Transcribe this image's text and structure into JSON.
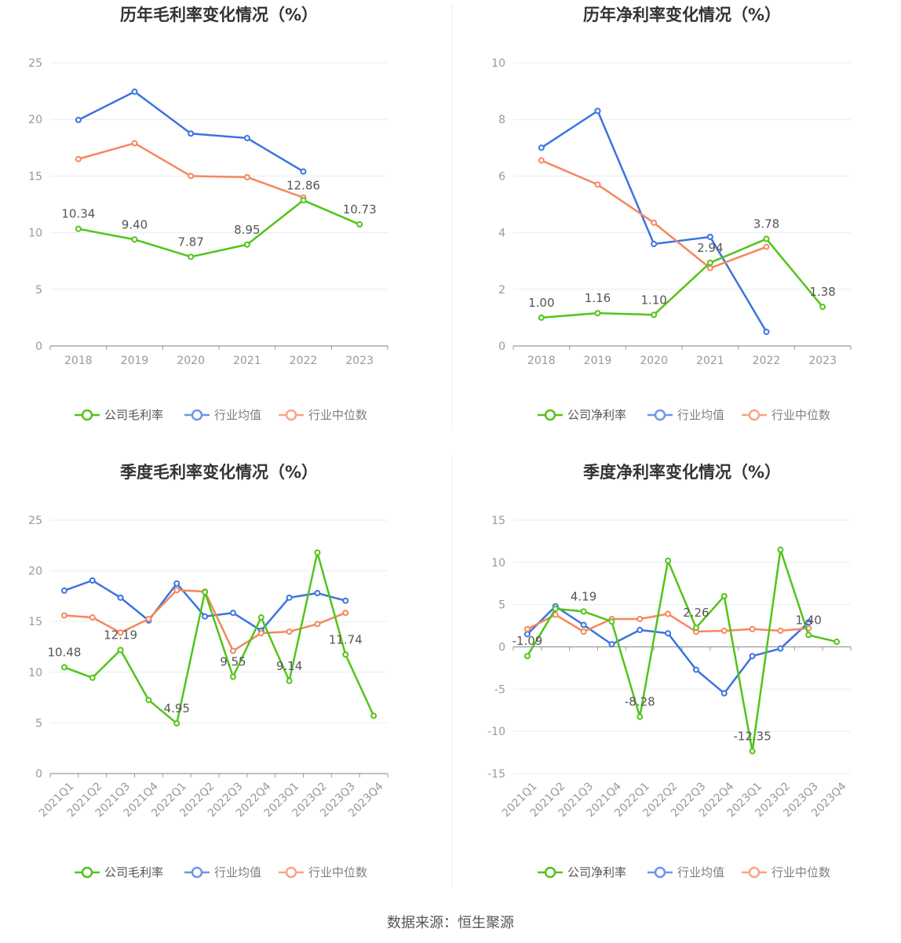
{
  "colors": {
    "company": "#52c41a",
    "industry_avg": "#3b73e0",
    "industry_median": "#f5875d",
    "axis": "#999999",
    "grid": "#e8ebf2",
    "label": "#555555",
    "title": "#333333"
  },
  "chart_data": [
    {
      "type": "line",
      "title": "历年毛利率变化情况（%）",
      "categories": [
        "2018",
        "2019",
        "2020",
        "2021",
        "2022",
        "2023"
      ],
      "ylim": [
        0,
        25
      ],
      "yticks": [
        0,
        5,
        10,
        15,
        20,
        25
      ],
      "xlabel": "",
      "ylabel": "",
      "legend_position": "bottom",
      "series": [
        {
          "name": "公司毛利率",
          "key": "company",
          "values": [
            10.34,
            9.4,
            7.87,
            8.95,
            12.86,
            10.73
          ],
          "labels": [
            "10.34",
            "9.40",
            "7.87",
            "8.95",
            "12.86",
            "10.73"
          ]
        },
        {
          "name": "行业均值",
          "key": "industry_avg",
          "values": [
            19.95,
            22.45,
            18.75,
            18.35,
            15.4,
            null
          ]
        },
        {
          "name": "行业中位数",
          "key": "industry_median",
          "values": [
            16.5,
            17.9,
            15.0,
            14.9,
            13.1,
            null
          ]
        }
      ]
    },
    {
      "type": "line",
      "title": "历年净利率变化情况（%）",
      "categories": [
        "2018",
        "2019",
        "2020",
        "2021",
        "2022",
        "2023"
      ],
      "ylim": [
        0,
        10
      ],
      "yticks": [
        0,
        2,
        4,
        6,
        8,
        10
      ],
      "xlabel": "",
      "ylabel": "",
      "legend_position": "bottom",
      "series": [
        {
          "name": "公司净利率",
          "key": "company",
          "values": [
            1.0,
            1.16,
            1.1,
            2.94,
            3.78,
            1.38
          ],
          "labels": [
            "1.00",
            "1.16",
            "1.10",
            "2.94",
            "3.78",
            "1.38"
          ]
        },
        {
          "name": "行业均值",
          "key": "industry_avg",
          "values": [
            7.0,
            8.3,
            3.6,
            3.85,
            0.5,
            null
          ]
        },
        {
          "name": "行业中位数",
          "key": "industry_median",
          "values": [
            6.55,
            5.7,
            4.35,
            2.75,
            3.5,
            null
          ]
        }
      ]
    },
    {
      "type": "line",
      "title": "季度毛利率变化情况（%）",
      "categories": [
        "2021Q1",
        "2021Q2",
        "2021Q3",
        "2021Q4",
        "2022Q1",
        "2022Q2",
        "2022Q3",
        "2022Q4",
        "2023Q1",
        "2023Q2",
        "2023Q3",
        "2023Q4"
      ],
      "ylim": [
        0,
        25
      ],
      "yticks": [
        0,
        5,
        10,
        15,
        20,
        25
      ],
      "xlabel": "",
      "ylabel": "",
      "legend_position": "bottom",
      "series": [
        {
          "name": "公司毛利率",
          "key": "company",
          "values": [
            10.48,
            9.45,
            12.19,
            7.25,
            4.95,
            17.9,
            9.55,
            15.4,
            9.14,
            21.8,
            11.74,
            5.7
          ],
          "labels": [
            "10.48",
            null,
            "12.19",
            null,
            "4.95",
            null,
            "9.55",
            null,
            "9.14",
            null,
            "11.74",
            null
          ]
        },
        {
          "name": "行业均值",
          "key": "industry_avg",
          "values": [
            18.05,
            19.05,
            17.35,
            15.1,
            18.75,
            15.5,
            15.85,
            14.1,
            17.35,
            17.8,
            17.05,
            null
          ]
        },
        {
          "name": "行业中位数",
          "key": "industry_median",
          "values": [
            15.6,
            15.4,
            13.9,
            15.25,
            18.1,
            17.95,
            12.1,
            13.85,
            14.0,
            14.75,
            15.85,
            null
          ]
        }
      ]
    },
    {
      "type": "line",
      "title": "季度净利率变化情况（%）",
      "categories": [
        "2021Q1",
        "2021Q2",
        "2021Q3",
        "2021Q4",
        "2022Q1",
        "2022Q2",
        "2022Q3",
        "2022Q4",
        "2023Q1",
        "2023Q2",
        "2023Q3",
        "2023Q4"
      ],
      "ylim": [
        -15,
        15
      ],
      "yticks": [
        -15,
        -10,
        -5,
        0,
        5,
        10,
        15
      ],
      "xlabel": "",
      "ylabel": "",
      "legend_position": "bottom",
      "series": [
        {
          "name": "公司净利率",
          "key": "company",
          "values": [
            -1.09,
            4.5,
            4.19,
            3.0,
            -8.28,
            10.2,
            2.26,
            6.0,
            -12.35,
            11.5,
            1.4,
            0.6
          ],
          "labels": [
            "-1.09",
            null,
            "4.19",
            null,
            "-8.28",
            null,
            "2.26",
            null,
            "-12.35",
            null,
            "1.40",
            null
          ]
        },
        {
          "name": "行业均值",
          "key": "industry_avg",
          "values": [
            1.5,
            4.8,
            2.6,
            0.3,
            2.0,
            1.6,
            -2.7,
            -5.5,
            -1.1,
            -0.2,
            2.9,
            null
          ]
        },
        {
          "name": "行业中位数",
          "key": "industry_median",
          "values": [
            2.1,
            3.8,
            1.8,
            3.3,
            3.3,
            3.9,
            1.8,
            1.9,
            2.1,
            1.9,
            2.2,
            null
          ]
        }
      ]
    }
  ],
  "footer": "数据来源：恒生聚源"
}
